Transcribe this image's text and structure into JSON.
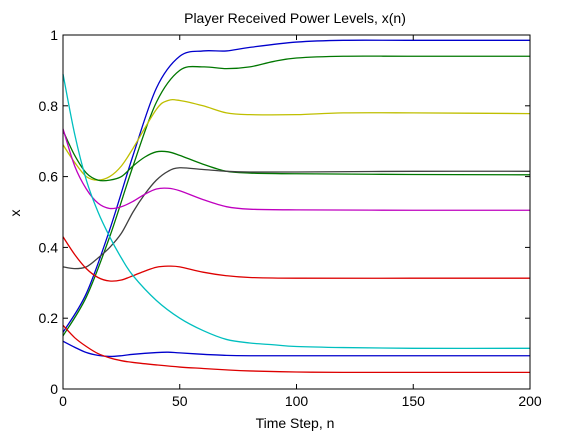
{
  "chart_data": {
    "type": "line",
    "title": "Player Received Power Levels, x(n)",
    "xlabel": "Time Step, n",
    "ylabel": "x",
    "xlim": [
      0,
      200
    ],
    "ylim": [
      0,
      1
    ],
    "xticks": [
      0,
      50,
      100,
      150,
      200
    ],
    "yticks": [
      0,
      0.2,
      0.4,
      0.6,
      0.8,
      1
    ],
    "ytick_labels": [
      "0",
      "0.2",
      "0.4",
      "0.6",
      "0.8",
      "1"
    ],
    "grid": false,
    "legend": "none",
    "series": [
      {
        "color": "#0000cc",
        "x": [
          0,
          10,
          20,
          30,
          40,
          50,
          60,
          70,
          80,
          100,
          120,
          150,
          200
        ],
        "y": [
          0.16,
          0.27,
          0.45,
          0.66,
          0.85,
          0.94,
          0.955,
          0.955,
          0.965,
          0.98,
          0.985,
          0.985,
          0.985
        ]
      },
      {
        "color": "#007700",
        "x": [
          0,
          10,
          20,
          30,
          40,
          50,
          60,
          70,
          80,
          90,
          100,
          120,
          150,
          200
        ],
        "y": [
          0.15,
          0.26,
          0.43,
          0.63,
          0.81,
          0.9,
          0.91,
          0.905,
          0.91,
          0.925,
          0.935,
          0.94,
          0.94,
          0.94
        ]
      },
      {
        "color": "#bfbf00",
        "x": [
          0,
          5,
          10,
          15,
          20,
          25,
          30,
          40,
          45,
          50,
          60,
          70,
          80,
          100,
          120,
          150,
          200
        ],
        "y": [
          0.69,
          0.64,
          0.6,
          0.59,
          0.6,
          0.63,
          0.68,
          0.79,
          0.815,
          0.815,
          0.8,
          0.78,
          0.775,
          0.775,
          0.78,
          0.78,
          0.778
        ]
      },
      {
        "color": "#007700",
        "x": [
          0,
          5,
          10,
          15,
          20,
          25,
          30,
          35,
          40,
          45,
          50,
          60,
          70,
          80,
          100,
          150,
          200
        ],
        "y": [
          0.73,
          0.66,
          0.61,
          0.59,
          0.59,
          0.6,
          0.63,
          0.655,
          0.67,
          0.67,
          0.66,
          0.635,
          0.615,
          0.61,
          0.608,
          0.606,
          0.605
        ]
      },
      {
        "color": "#404040",
        "x": [
          0,
          5,
          10,
          15,
          20,
          25,
          30,
          35,
          40,
          45,
          50,
          60,
          70,
          80,
          100,
          150,
          200
        ],
        "y": [
          0.345,
          0.34,
          0.345,
          0.37,
          0.4,
          0.44,
          0.5,
          0.55,
          0.59,
          0.615,
          0.625,
          0.62,
          0.615,
          0.613,
          0.613,
          0.615,
          0.615
        ]
      },
      {
        "color": "#bf00bf",
        "x": [
          0,
          5,
          10,
          15,
          20,
          25,
          30,
          35,
          40,
          45,
          50,
          60,
          70,
          80,
          100,
          150,
          200
        ],
        "y": [
          0.735,
          0.63,
          0.565,
          0.525,
          0.51,
          0.515,
          0.53,
          0.55,
          0.565,
          0.567,
          0.56,
          0.535,
          0.515,
          0.508,
          0.506,
          0.505,
          0.505
        ]
      },
      {
        "color": "#dd0000",
        "x": [
          0,
          5,
          10,
          15,
          20,
          25,
          30,
          35,
          40,
          45,
          50,
          60,
          70,
          80,
          100,
          150,
          200
        ],
        "y": [
          0.43,
          0.38,
          0.34,
          0.315,
          0.305,
          0.308,
          0.32,
          0.333,
          0.344,
          0.347,
          0.345,
          0.33,
          0.32,
          0.315,
          0.313,
          0.313,
          0.313
        ]
      },
      {
        "color": "#00bfbf",
        "x": [
          0,
          5,
          10,
          15,
          20,
          25,
          30,
          40,
          50,
          60,
          70,
          80,
          90,
          100,
          120,
          150,
          200
        ],
        "y": [
          0.89,
          0.72,
          0.59,
          0.5,
          0.43,
          0.37,
          0.32,
          0.25,
          0.2,
          0.165,
          0.14,
          0.13,
          0.125,
          0.12,
          0.117,
          0.115,
          0.115
        ]
      },
      {
        "color": "#0000cc",
        "x": [
          0,
          5,
          10,
          15,
          20,
          25,
          30,
          40,
          45,
          50,
          60,
          70,
          80,
          100,
          150,
          200
        ],
        "y": [
          0.135,
          0.118,
          0.103,
          0.095,
          0.092,
          0.094,
          0.098,
          0.103,
          0.104,
          0.102,
          0.098,
          0.095,
          0.094,
          0.094,
          0.094,
          0.094
        ]
      },
      {
        "color": "#dd0000",
        "x": [
          0,
          5,
          10,
          15,
          20,
          25,
          30,
          40,
          50,
          60,
          70,
          80,
          100,
          120,
          150,
          200
        ],
        "y": [
          0.18,
          0.145,
          0.12,
          0.1,
          0.088,
          0.08,
          0.075,
          0.068,
          0.062,
          0.058,
          0.054,
          0.051,
          0.048,
          0.047,
          0.047,
          0.047
        ]
      }
    ]
  }
}
